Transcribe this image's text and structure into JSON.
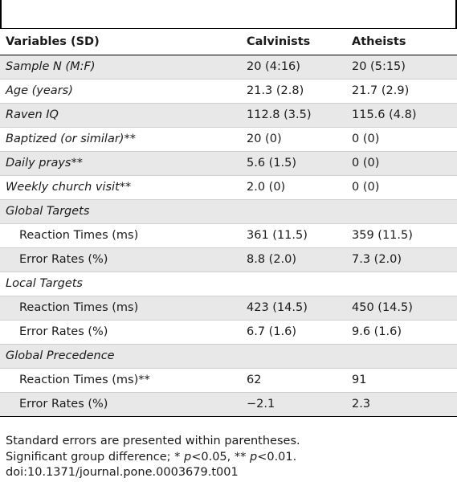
{
  "table": {
    "headers": [
      "Variables (SD)",
      "Calvinists",
      "Atheists"
    ],
    "rows": [
      {
        "label": "Sample N (M:F)",
        "calvinists": "20 (4:16)",
        "atheists": "20 (5:15)",
        "italic": true,
        "indent": false
      },
      {
        "label": "Age (years)",
        "calvinists": "21.3 (2.8)",
        "atheists": "21.7 (2.9)",
        "italic": true,
        "indent": false
      },
      {
        "label": "Raven IQ",
        "calvinists": "112.8 (3.5)",
        "atheists": "115.6 (4.8)",
        "italic": true,
        "indent": false
      },
      {
        "label": "Baptized (or similar)**",
        "calvinists": "20 (0)",
        "atheists": "0 (0)",
        "italic": true,
        "indent": false
      },
      {
        "label": "Daily prays**",
        "calvinists": "5.6 (1.5)",
        "atheists": "0 (0)",
        "italic": true,
        "indent": false
      },
      {
        "label": "Weekly church visit**",
        "calvinists": "2.0 (0)",
        "atheists": "0 (0)",
        "italic": true,
        "indent": false
      },
      {
        "label": "Global Targets",
        "calvinists": "",
        "atheists": "",
        "italic": true,
        "indent": false
      },
      {
        "label": "Reaction Times (ms)",
        "calvinists": "361 (11.5)",
        "atheists": "359 (11.5)",
        "italic": false,
        "indent": true
      },
      {
        "label": "Error Rates (%)",
        "calvinists": "8.8 (2.0)",
        "atheists": "7.3 (2.0)",
        "italic": false,
        "indent": true
      },
      {
        "label": "Local Targets",
        "calvinists": "",
        "atheists": "",
        "italic": true,
        "indent": false
      },
      {
        "label": "Reaction Times (ms)",
        "calvinists": "423 (14.5)",
        "atheists": "450 (14.5)",
        "italic": false,
        "indent": true
      },
      {
        "label": "Error Rates (%)",
        "calvinists": "6.7 (1.6)",
        "atheists": "9.6 (1.6)",
        "italic": false,
        "indent": true
      },
      {
        "label": "Global Precedence",
        "calvinists": "",
        "atheists": "",
        "italic": true,
        "indent": false
      },
      {
        "label": "Reaction Times (ms)**",
        "calvinists": "62",
        "atheists": "91",
        "italic": false,
        "indent": true
      },
      {
        "label": "Error Rates (%)",
        "calvinists": "−2.1",
        "atheists": "2.3",
        "italic": false,
        "indent": true
      }
    ]
  },
  "notes": {
    "line1": "Standard errors are presented within parentheses.",
    "line2_prefix": "Significant group difference; * ",
    "line2_p1": "p",
    "line2_mid": "<0.05, ** ",
    "line2_p2": "p",
    "line2_suffix": "<0.01.",
    "doi": "doi:10.1371/journal.pone.0003679.t001"
  }
}
